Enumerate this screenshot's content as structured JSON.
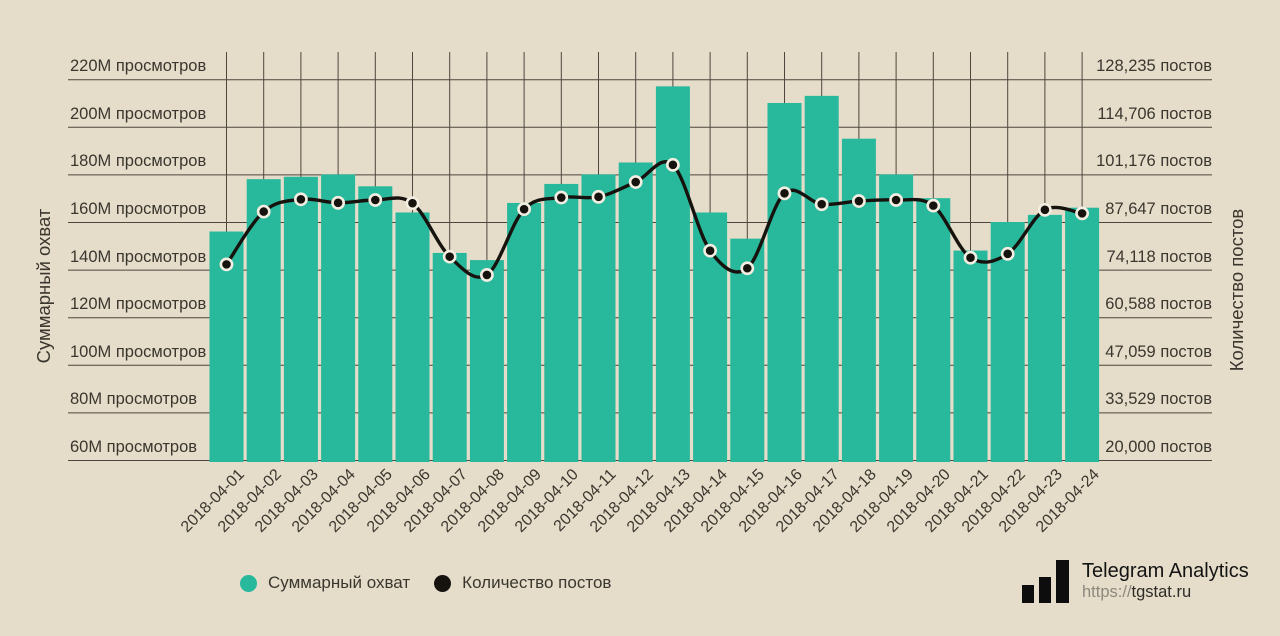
{
  "colors": {
    "background": "#e5ddca",
    "grid": "#4d463c",
    "text": "#3b362e",
    "bar": "#28b89c",
    "line": "#16130f",
    "point_ring": "#f3eee1"
  },
  "chart_data": {
    "type": "bar+line",
    "title": "",
    "grid": true,
    "categories": [
      "2018-04-01",
      "2018-04-02",
      "2018-04-03",
      "2018-04-04",
      "2018-04-05",
      "2018-04-06",
      "2018-04-07",
      "2018-04-08",
      "2018-04-09",
      "2018-04-10",
      "2018-04-11",
      "2018-04-12",
      "2018-04-13",
      "2018-04-14",
      "2018-04-15",
      "2018-04-16",
      "2018-04-17",
      "2018-04-18",
      "2018-04-19",
      "2018-04-20",
      "2018-04-21",
      "2018-04-22",
      "2018-04-23",
      "2018-04-24"
    ],
    "series": [
      {
        "name": "Суммарный охват",
        "type": "bar",
        "axis": "left",
        "unit": "M просмотров",
        "color": "#28b89c",
        "values": [
          156,
          178,
          179,
          180,
          175,
          164,
          147,
          144,
          168,
          176,
          180,
          185,
          217,
          164,
          153,
          210,
          213,
          195,
          180,
          170,
          148,
          160,
          163,
          166
        ]
      },
      {
        "name": "Количество постов",
        "type": "line",
        "axis": "right",
        "unit": "постов",
        "color": "#16130f",
        "values": [
          75600,
          90600,
          94100,
          93100,
          93900,
          93000,
          77800,
          72600,
          91300,
          94600,
          94800,
          99000,
          103900,
          79500,
          74500,
          95800,
          92700,
          93600,
          93900,
          92300,
          77500,
          78600,
          91100,
          90100
        ]
      }
    ],
    "left_axis": {
      "title": "Суммарный охват",
      "min": 60,
      "max": 220,
      "tick_values": [
        220,
        200,
        180,
        160,
        140,
        120,
        100,
        80,
        60
      ],
      "tick_labels": [
        "220M просмотров",
        "200M просмотров",
        "180M просмотров",
        "160M просмотров",
        "140M просмотров",
        "120M просмотров",
        "100M просмотров",
        "80M просмотров",
        "60M просмотров"
      ]
    },
    "right_axis": {
      "title": "Количество постов",
      "min": 20000,
      "max": 128235,
      "tick_values": [
        128235,
        114706,
        101176,
        87647,
        74118,
        60588,
        47059,
        33529,
        20000
      ],
      "tick_labels": [
        "128,235 постов",
        "114,706 постов",
        "101,176 постов",
        "87,647 постов",
        "74,118 постов",
        "60,588 постов",
        "47,059 постов",
        "33,529 постов",
        "20,000 постов"
      ]
    },
    "legend": {
      "position": "bottom-left",
      "items": [
        {
          "label": "Суммарный охват",
          "color": "#28b89c"
        },
        {
          "label": "Количество постов",
          "color": "#16130f"
        }
      ]
    }
  },
  "branding": {
    "title": "Telegram Analytics",
    "url_scheme": "https://",
    "url_host": "tgstat.ru",
    "icon": "bar-chart-icon"
  }
}
